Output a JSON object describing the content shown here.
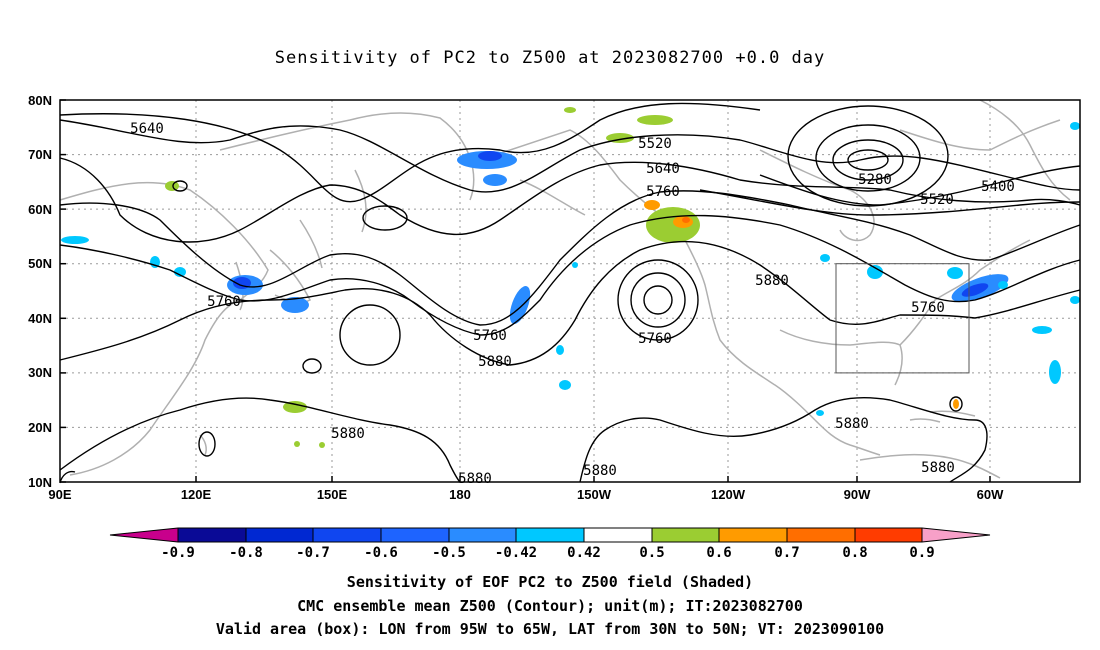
{
  "title": "Sensitivity of PC2 to Z500 at 2023082700 +0.0 day",
  "lat_ticks": [
    "80N",
    "70N",
    "60N",
    "50N",
    "40N",
    "30N",
    "20N",
    "10N"
  ],
  "lon_ticks": [
    "90E",
    "120E",
    "150E",
    "180",
    "150W",
    "120W",
    "90W",
    "60W"
  ],
  "contour_labels": [
    "5640",
    "5520",
    "5640",
    "5760",
    "5280",
    "5400",
    "5520",
    "5760",
    "5880",
    "5760",
    "5760",
    "5880",
    "5760",
    "5880",
    "5880",
    "5880",
    "5880",
    "5880"
  ],
  "colorbar": {
    "labels": [
      "-0.9",
      "-0.8",
      "-0.7",
      "-0.6",
      "-0.5",
      "-0.42",
      "0.42",
      "0.5",
      "0.6",
      "0.7",
      "0.8",
      "0.9"
    ],
    "colors": [
      "#c8008c",
      "#0a0a96",
      "#0028d2",
      "#1046f0",
      "#1e64ff",
      "#2a8cff",
      "#00c8ff",
      "#ffffff",
      "#9bcd32",
      "#ff9b00",
      "#ff6e00",
      "#ff3c00",
      "#ff0000",
      "#f7a0c8"
    ]
  },
  "captions": [
    "Sensitivity of EOF PC2 to Z500 field (Shaded)",
    "CMC ensemble mean Z500 (Contour); unit(m); IT:2023082700",
    "Valid area (box): LON from 95W to 65W, LAT from 30N to 50N; VT: 2023090100"
  ],
  "valid_area": {
    "lon_range": [
      "95W",
      "65W"
    ],
    "lat_range": [
      "30N",
      "50N"
    ]
  }
}
